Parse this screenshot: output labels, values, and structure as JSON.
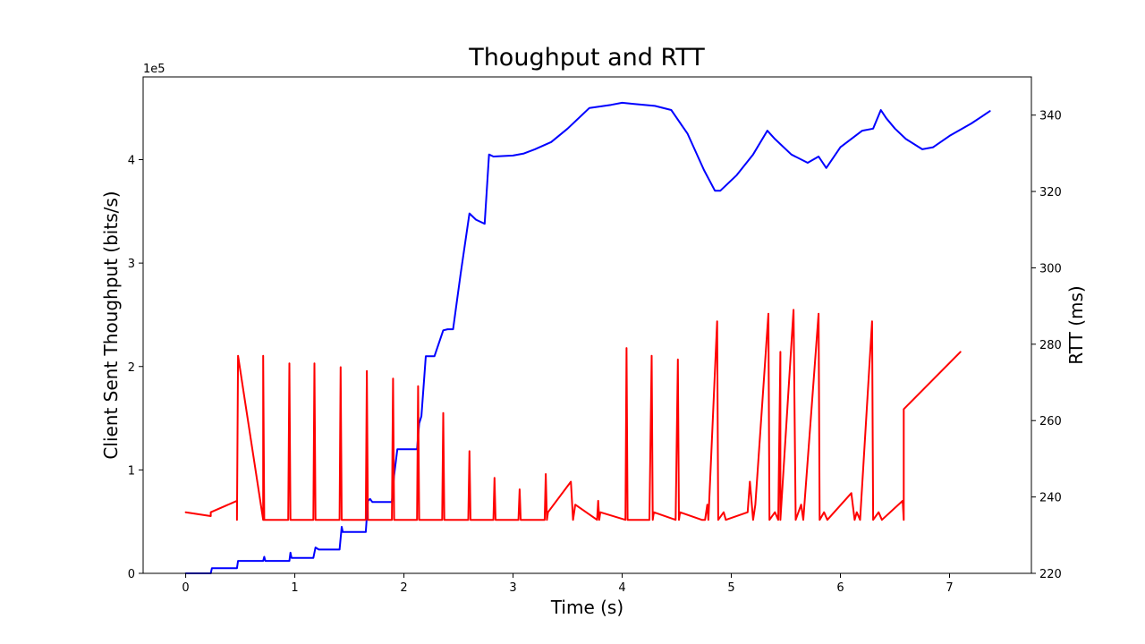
{
  "chart_data": {
    "type": "line",
    "title": "Thoughput and RTT",
    "xlabel": "Time (s)",
    "ylabel_left": "Client Sent Thoughput (bits/s)",
    "ylabel_right": "RTT (ms)",
    "y_left_multiplier": "1e5",
    "xlim": [
      -0.39,
      7.75
    ],
    "ylim_left": [
      0,
      4.8
    ],
    "ylim_right": [
      220,
      350
    ],
    "x_ticks": [
      0,
      1,
      2,
      3,
      4,
      5,
      6,
      7
    ],
    "x_tick_labels": [
      "0",
      "1",
      "2",
      "3",
      "4",
      "5",
      "6",
      "7"
    ],
    "y_left_ticks": [
      0,
      1,
      2,
      3,
      4
    ],
    "y_left_tick_labels": [
      "0",
      "1",
      "2",
      "3",
      "4"
    ],
    "y_right_ticks": [
      220,
      240,
      260,
      280,
      300,
      320,
      340
    ],
    "y_right_tick_labels": [
      "220",
      "240",
      "260",
      "280",
      "300",
      "320",
      "340"
    ],
    "grid": false,
    "legend": "none",
    "series": [
      {
        "axis": "left",
        "color": "#0000ff",
        "unit_multiplier": "1e5",
        "x": [
          0,
          0.23,
          0.24,
          0.47,
          0.48,
          0.71,
          0.72,
          0.73,
          0.74,
          0.95,
          0.96,
          0.97,
          0.98,
          1.17,
          1.19,
          1.22,
          1.41,
          1.43,
          1.44,
          1.65,
          1.67,
          1.69,
          1.71,
          1.89,
          1.91,
          1.94,
          2.12,
          2.14,
          2.16,
          2.2,
          2.28,
          2.36,
          2.4,
          2.45,
          2.52,
          2.6,
          2.66,
          2.7,
          2.74,
          2.78,
          2.82,
          3.0,
          3.1,
          3.2,
          3.35,
          3.5,
          3.7,
          3.9,
          4.0,
          4.1,
          4.3,
          4.45,
          4.6,
          4.75,
          4.85,
          4.9,
          5.05,
          5.2,
          5.33,
          5.4,
          5.55,
          5.7,
          5.8,
          5.87,
          6.0,
          6.2,
          6.3,
          6.37,
          6.42,
          6.5,
          6.6,
          6.75,
          6.85,
          7.0,
          7.2,
          7.3,
          7.37
        ],
        "values": [
          0,
          0,
          0.05,
          0.05,
          0.12,
          0.12,
          0.16,
          0.12,
          0.12,
          0.12,
          0.2,
          0.15,
          0.15,
          0.15,
          0.25,
          0.23,
          0.23,
          0.45,
          0.4,
          0.4,
          0.7,
          0.72,
          0.69,
          0.69,
          0.95,
          1.2,
          1.2,
          1.45,
          1.52,
          2.1,
          2.1,
          2.35,
          2.36,
          2.36,
          2.9,
          3.48,
          3.42,
          3.4,
          3.38,
          4.05,
          4.03,
          4.04,
          4.06,
          4.1,
          4.17,
          4.3,
          4.5,
          4.53,
          4.55,
          4.54,
          4.52,
          4.48,
          4.25,
          3.9,
          3.7,
          3.7,
          3.85,
          4.05,
          4.28,
          4.2,
          4.05,
          3.97,
          4.03,
          3.92,
          4.12,
          4.28,
          4.3,
          4.48,
          4.4,
          4.3,
          4.2,
          4.1,
          4.12,
          4.23,
          4.35,
          4.42,
          4.47
        ]
      },
      {
        "axis": "right",
        "color": "#ff0000",
        "x": [
          0,
          0.23,
          0.23,
          0.47,
          0.47,
          0.48,
          0.71,
          0.71,
          0.72,
          0.74,
          0.94,
          0.95,
          0.96,
          0.96,
          1.17,
          1.18,
          1.19,
          1.19,
          1.41,
          1.42,
          1.43,
          1.43,
          1.65,
          1.66,
          1.67,
          1.67,
          1.89,
          1.9,
          1.91,
          1.91,
          2.12,
          2.13,
          2.14,
          2.14,
          2.35,
          2.36,
          2.37,
          2.37,
          2.59,
          2.6,
          2.61,
          2.61,
          2.82,
          2.83,
          2.84,
          3.05,
          3.06,
          3.07,
          3.29,
          3.3,
          3.31,
          3.32,
          3.53,
          3.55,
          3.57,
          3.77,
          3.78,
          3.79,
          3.8,
          4.03,
          4.04,
          4.05,
          4.25,
          4.27,
          4.28,
          4.29,
          4.49,
          4.51,
          4.52,
          4.53,
          4.73,
          4.76,
          4.78,
          4.79,
          4.87,
          4.88,
          4.93,
          4.95,
          5.15,
          5.17,
          5.2,
          5.22,
          5.34,
          5.35,
          5.4,
          5.43,
          5.45,
          5.45,
          5.57,
          5.59,
          5.64,
          5.66,
          5.8,
          5.81,
          5.85,
          5.88,
          6.1,
          6.13,
          6.15,
          6.18,
          6.29,
          6.3,
          6.35,
          6.38,
          6.57,
          6.58,
          6.58,
          7.1
        ],
        "values": [
          236,
          235,
          236,
          239,
          234,
          277,
          234,
          277,
          234,
          234,
          234,
          275,
          234,
          234,
          234,
          275,
          234,
          234,
          234,
          274,
          234,
          234,
          234,
          273,
          234,
          234,
          234,
          271,
          234,
          234,
          234,
          269,
          234,
          234,
          234,
          262,
          234,
          234,
          234,
          252,
          234,
          234,
          234,
          245,
          234,
          234,
          242,
          234,
          234,
          246,
          234,
          236,
          244,
          234,
          238,
          234,
          239,
          234,
          236,
          234,
          279,
          234,
          234,
          277,
          234,
          236,
          234,
          276,
          234,
          236,
          234,
          234,
          238,
          234,
          286,
          234,
          236,
          234,
          236,
          244,
          234,
          238,
          288,
          234,
          236,
          234,
          278,
          234,
          289,
          234,
          238,
          234,
          288,
          234,
          236,
          234,
          241,
          234,
          236,
          234,
          286,
          234,
          236,
          234,
          239,
          234,
          263,
          278
        ]
      }
    ]
  }
}
